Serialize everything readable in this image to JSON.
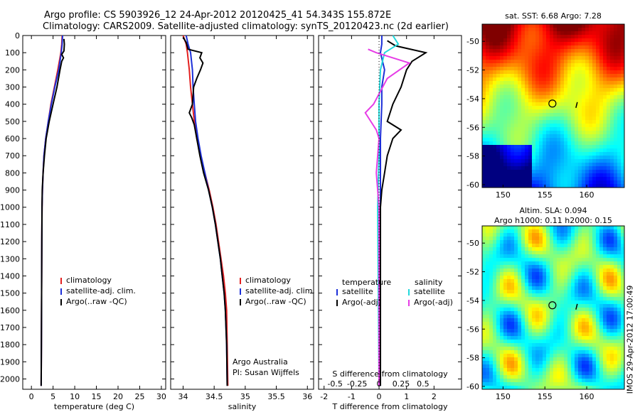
{
  "title_line1": "Argo profile: CS 5903926_12 24-Apr-2012 20120425_41 54.343S 155.872E",
  "title_line2": "Climatology: CARS2009. Satellite-adjusted climatology: synTS_20120423.nc (2d earlier)",
  "credit": "IMOS 29-Apr-2012 17:00:49",
  "colors": {
    "climatology": "#e32020",
    "satellite": "#1c2fd8",
    "argo": "#000000",
    "sal_satellite": "#22d8dc",
    "sal_argo": "#e63ce6"
  },
  "chart_data": [
    {
      "type": "line",
      "xlabel": "temperature (deg C)",
      "ylabel": "",
      "xlim": [
        -2,
        31
      ],
      "ylim": [
        2060,
        0
      ],
      "xticks": [
        0,
        5,
        10,
        15,
        20,
        25,
        30
      ],
      "yticks": [
        0,
        100,
        200,
        300,
        400,
        500,
        600,
        700,
        800,
        900,
        1000,
        1100,
        1200,
        1300,
        1400,
        1500,
        1600,
        1700,
        1800,
        1900,
        2000
      ],
      "legend": [
        "climatology",
        "satellite-adj. clim.",
        "Argo(..raw -QC)"
      ],
      "series": [
        {
          "name": "climatology",
          "color": "#e32020",
          "points": [
            [
              7.1,
              0
            ],
            [
              7.0,
              50
            ],
            [
              6.8,
              100
            ],
            [
              6.1,
              200
            ],
            [
              5.3,
              300
            ],
            [
              4.5,
              400
            ],
            [
              3.9,
              500
            ],
            [
              3.3,
              600
            ],
            [
              2.9,
              700
            ],
            [
              2.7,
              800
            ],
            [
              2.55,
              900
            ],
            [
              2.45,
              1000
            ],
            [
              2.4,
              1200
            ],
            [
              2.35,
              1500
            ],
            [
              2.3,
              1800
            ],
            [
              2.25,
              2040
            ]
          ]
        },
        {
          "name": "satellite-adj. clim.",
          "color": "#1c2fd8",
          "points": [
            [
              7.2,
              0
            ],
            [
              7.1,
              50
            ],
            [
              6.9,
              100
            ],
            [
              6.3,
              200
            ],
            [
              5.4,
              300
            ],
            [
              4.6,
              400
            ],
            [
              3.9,
              500
            ],
            [
              3.3,
              600
            ],
            [
              2.9,
              700
            ],
            [
              2.7,
              800
            ],
            [
              2.55,
              900
            ],
            [
              2.45,
              1000
            ],
            [
              2.4,
              1200
            ],
            [
              2.35,
              1500
            ],
            [
              2.3,
              1800
            ],
            [
              2.25,
              2040
            ]
          ]
        },
        {
          "name": "Argo(..raw -QC)",
          "color": "#000000",
          "points": [
            [
              7.5,
              20
            ],
            [
              7.6,
              50
            ],
            [
              7.5,
              90
            ],
            [
              7.0,
              110
            ],
            [
              7.4,
              130
            ],
            [
              7.0,
              150
            ],
            [
              6.6,
              200
            ],
            [
              5.9,
              300
            ],
            [
              5.0,
              400
            ],
            [
              4.1,
              500
            ],
            [
              3.4,
              600
            ],
            [
              3.0,
              700
            ],
            [
              2.7,
              800
            ],
            [
              2.5,
              900
            ],
            [
              2.45,
              1000
            ],
            [
              2.4,
              1200
            ],
            [
              2.35,
              1500
            ],
            [
              2.3,
              1800
            ],
            [
              2.25,
              2040
            ]
          ]
        }
      ]
    },
    {
      "type": "line",
      "xlabel": "salinity",
      "ylabel": "",
      "xlim": [
        33.8,
        36.1
      ],
      "ylim": [
        2060,
        0
      ],
      "xticks": [
        34,
        34.5,
        35,
        35.5,
        36
      ],
      "legend": [
        "climatology",
        "satellite-adj. clim.",
        "Argo(..raw -QC)"
      ],
      "annotations": [
        "Argo Australia",
        "PI: Susan Wijffels"
      ],
      "series": [
        {
          "name": "climatology",
          "color": "#e32020",
          "points": [
            [
              34.0,
              0
            ],
            [
              34.05,
              50
            ],
            [
              34.07,
              100
            ],
            [
              34.1,
              200
            ],
            [
              34.12,
              300
            ],
            [
              34.15,
              400
            ],
            [
              34.18,
              500
            ],
            [
              34.22,
              600
            ],
            [
              34.28,
              700
            ],
            [
              34.35,
              800
            ],
            [
              34.42,
              900
            ],
            [
              34.48,
              1000
            ],
            [
              34.53,
              1100
            ],
            [
              34.57,
              1200
            ],
            [
              34.61,
              1300
            ],
            [
              34.65,
              1400
            ],
            [
              34.68,
              1500
            ],
            [
              34.7,
              1600
            ],
            [
              34.71,
              1800
            ],
            [
              34.72,
              2040
            ]
          ]
        },
        {
          "name": "satellite-adj. clim.",
          "color": "#1c2fd8",
          "points": [
            [
              34.05,
              0
            ],
            [
              34.08,
              50
            ],
            [
              34.12,
              100
            ],
            [
              34.15,
              200
            ],
            [
              34.16,
              300
            ],
            [
              34.18,
              400
            ],
            [
              34.2,
              500
            ],
            [
              34.24,
              600
            ],
            [
              34.29,
              700
            ],
            [
              34.35,
              800
            ],
            [
              34.41,
              900
            ],
            [
              34.47,
              1000
            ],
            [
              34.52,
              1100
            ],
            [
              34.56,
              1200
            ],
            [
              34.6,
              1300
            ],
            [
              34.63,
              1400
            ],
            [
              34.66,
              1500
            ],
            [
              34.68,
              1600
            ],
            [
              34.7,
              1800
            ],
            [
              34.71,
              2040
            ]
          ]
        },
        {
          "name": "Argo(..raw -QC)",
          "color": "#000000",
          "points": [
            [
              34.0,
              10
            ],
            [
              34.05,
              40
            ],
            [
              34.08,
              80
            ],
            [
              34.3,
              100
            ],
            [
              34.27,
              130
            ],
            [
              34.32,
              160
            ],
            [
              34.28,
              200
            ],
            [
              34.22,
              250
            ],
            [
              34.17,
              300
            ],
            [
              34.15,
              400
            ],
            [
              34.1,
              450
            ],
            [
              34.14,
              480
            ],
            [
              34.18,
              520
            ],
            [
              34.22,
              600
            ],
            [
              34.27,
              700
            ],
            [
              34.33,
              800
            ],
            [
              34.41,
              900
            ],
            [
              34.47,
              1000
            ],
            [
              34.52,
              1100
            ],
            [
              34.56,
              1200
            ],
            [
              34.6,
              1300
            ],
            [
              34.63,
              1400
            ],
            [
              34.66,
              1500
            ],
            [
              34.68,
              1600
            ],
            [
              34.7,
              1800
            ],
            [
              34.71,
              2040
            ]
          ]
        }
      ]
    },
    {
      "type": "line",
      "xlabel": "T difference from climatology",
      "xlabel2": "S difference from climatology",
      "xlim": [
        -2.2,
        3.0
      ],
      "ylim": [
        2060,
        0
      ],
      "xticks": [
        -2,
        -1,
        0,
        1,
        2
      ],
      "xticks2_labels": [
        "-0.5",
        "-0.25",
        "0",
        "0.25",
        "0.5"
      ],
      "legend_groups": [
        "temperature",
        "salinity"
      ],
      "legend": [
        "satellite",
        "Argo(-adj)",
        "satellite",
        "Argo(-adj)"
      ],
      "series": [
        {
          "name": "temperature satellite",
          "color": "#1c2fd8",
          "points": [
            [
              0.1,
              0
            ],
            [
              0.1,
              50
            ],
            [
              0.05,
              100
            ],
            [
              0.2,
              200
            ],
            [
              0.1,
              300
            ],
            [
              0.1,
              400
            ],
            [
              0.05,
              600
            ],
            [
              0.05,
              1000
            ],
            [
              0.05,
              2040
            ]
          ]
        },
        {
          "name": "temperature Argo(-adj)",
          "color": "#000000",
          "points": [
            [
              0.3,
              30
            ],
            [
              0.6,
              60
            ],
            [
              1.7,
              100
            ],
            [
              1.2,
              150
            ],
            [
              1.0,
              200
            ],
            [
              0.8,
              300
            ],
            [
              0.5,
              400
            ],
            [
              0.3,
              500
            ],
            [
              0.8,
              550
            ],
            [
              0.5,
              600
            ],
            [
              0.3,
              700
            ],
            [
              0.2,
              800
            ],
            [
              0.1,
              900
            ],
            [
              0.05,
              1000
            ],
            [
              0.05,
              2040
            ]
          ]
        },
        {
          "name": "salinity satellite",
          "color": "#22d8dc",
          "points": [
            [
              0.5,
              0
            ],
            [
              0.7,
              50
            ],
            [
              0.2,
              100
            ],
            [
              0.05,
              200
            ],
            [
              0.0,
              400
            ],
            [
              0.0,
              700
            ],
            [
              -0.05,
              1000
            ],
            [
              0.0,
              2040
            ]
          ]
        },
        {
          "name": "salinity Argo(-adj)",
          "color": "#e63ce6",
          "points": [
            [
              -0.4,
              80
            ],
            [
              -0.1,
              100
            ],
            [
              0.5,
              130
            ],
            [
              1.1,
              160
            ],
            [
              0.3,
              250
            ],
            [
              -0.2,
              400
            ],
            [
              -0.5,
              450
            ],
            [
              -0.1,
              550
            ],
            [
              0.0,
              600
            ],
            [
              -0.05,
              700
            ],
            [
              -0.1,
              800
            ],
            [
              -0.05,
              900
            ],
            [
              0.0,
              1000
            ],
            [
              0.0,
              2040
            ]
          ]
        }
      ]
    },
    {
      "type": "heatmap",
      "title": "sat. SST: 6.68 Argo: 7.28",
      "xticks": [
        150,
        155,
        160
      ],
      "yticks": [
        -50,
        -52,
        -54,
        -56,
        -58,
        -60
      ],
      "xlim": [
        147.5,
        164.5
      ],
      "ylim": [
        -60.2,
        -48.8
      ],
      "marker": {
        "lon": 155.9,
        "lat": -54.34
      }
    },
    {
      "type": "heatmap",
      "title": "Altim. SLA: 0.094",
      "subtitle": "Argo h1000: 0.11 h2000: 0.15",
      "xticks": [
        150,
        155,
        160
      ],
      "yticks": [
        -50,
        -52,
        -54,
        -56,
        -58,
        -60
      ],
      "xlim": [
        147.5,
        164.5
      ],
      "ylim": [
        -60.2,
        -48.8
      ],
      "marker": {
        "lon": 155.9,
        "lat": -54.34
      }
    }
  ]
}
